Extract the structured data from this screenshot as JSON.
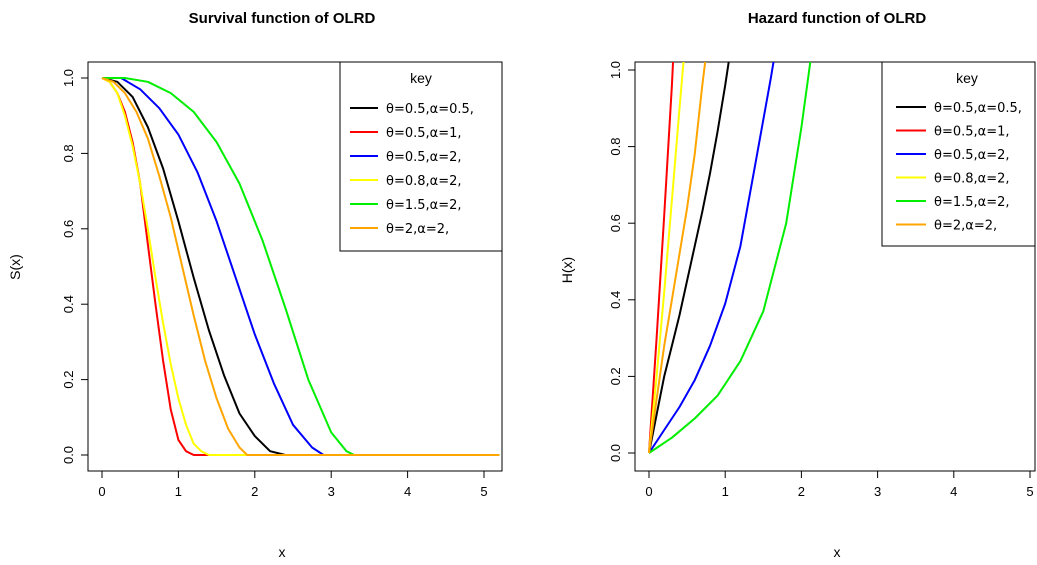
{
  "chart_data": [
    {
      "type": "line",
      "title": "Survival function of OLRD",
      "xlabel": "x",
      "ylabel": "S(x)",
      "xlim": [
        0,
        5.2
      ],
      "ylim": [
        0,
        1.0
      ],
      "xticks": [
        "0",
        "1",
        "2",
        "3",
        "4",
        "5"
      ],
      "yticks": [
        "0.0",
        "0.2",
        "0.4",
        "0.6",
        "0.8",
        "1.0"
      ],
      "legend": {
        "title": "key",
        "placement": "top-right"
      },
      "series": [
        {
          "name": "θ=0.5,α=0.5,",
          "color": "#000000",
          "x": [
            0,
            0.2,
            0.4,
            0.6,
            0.8,
            1.0,
            1.2,
            1.4,
            1.6,
            1.8,
            2.0,
            2.2,
            2.4,
            5.2
          ],
          "y": [
            1.0,
            0.99,
            0.95,
            0.87,
            0.76,
            0.62,
            0.47,
            0.33,
            0.21,
            0.11,
            0.05,
            0.01,
            0.0,
            0.0
          ]
        },
        {
          "name": "θ=0.5,α=1,",
          "color": "#ff0000",
          "x": [
            0,
            0.1,
            0.2,
            0.3,
            0.4,
            0.5,
            0.6,
            0.7,
            0.8,
            0.9,
            1.0,
            1.1,
            1.2,
            5.2
          ],
          "y": [
            1.0,
            0.99,
            0.96,
            0.91,
            0.83,
            0.72,
            0.56,
            0.4,
            0.25,
            0.12,
            0.04,
            0.01,
            0.0,
            0.0
          ]
        },
        {
          "name": "θ=0.5,α=2,",
          "color": "#0000ff",
          "x": [
            0,
            0.25,
            0.5,
            0.75,
            1.0,
            1.25,
            1.5,
            1.75,
            2.0,
            2.25,
            2.5,
            2.75,
            2.9,
            5.2
          ],
          "y": [
            1.0,
            1.0,
            0.97,
            0.92,
            0.85,
            0.75,
            0.62,
            0.47,
            0.32,
            0.19,
            0.08,
            0.02,
            0.0,
            0.0
          ]
        },
        {
          "name": "θ=0.8,α=2,",
          "color": "#ffff00",
          "x": [
            0,
            0.1,
            0.2,
            0.3,
            0.4,
            0.5,
            0.6,
            0.7,
            0.8,
            0.9,
            1.0,
            1.1,
            1.2,
            1.3,
            1.4,
            5.2
          ],
          "y": [
            1.0,
            0.99,
            0.96,
            0.9,
            0.82,
            0.72,
            0.6,
            0.47,
            0.35,
            0.24,
            0.15,
            0.08,
            0.03,
            0.01,
            0.0,
            0.0
          ]
        },
        {
          "name": "θ=1.5,α=2,",
          "color": "#00ee00",
          "x": [
            0,
            0.3,
            0.6,
            0.9,
            1.2,
            1.5,
            1.8,
            2.1,
            2.4,
            2.7,
            3.0,
            3.2,
            3.3,
            5.2
          ],
          "y": [
            1.0,
            1.0,
            0.99,
            0.96,
            0.91,
            0.83,
            0.72,
            0.57,
            0.39,
            0.2,
            0.06,
            0.01,
            0.0,
            0.0
          ]
        },
        {
          "name": "θ=2,α=2,",
          "color": "#ffa500",
          "x": [
            0,
            0.15,
            0.3,
            0.45,
            0.6,
            0.75,
            0.9,
            1.05,
            1.2,
            1.35,
            1.5,
            1.65,
            1.8,
            1.9,
            5.2
          ],
          "y": [
            1.0,
            0.99,
            0.96,
            0.91,
            0.84,
            0.74,
            0.63,
            0.5,
            0.37,
            0.25,
            0.15,
            0.07,
            0.02,
            0.0,
            0.0
          ]
        }
      ]
    },
    {
      "type": "line",
      "title": "Hazard function of OLRD",
      "xlabel": "x",
      "ylabel": "H(x)",
      "xlim": [
        0,
        5.2
      ],
      "ylim": [
        0,
        1.04
      ],
      "xticks": [
        "0",
        "1",
        "2",
        "3",
        "4",
        "5"
      ],
      "yticks": [
        "0.0",
        "0.2",
        "0.4",
        "0.6",
        "0.8",
        "1.0"
      ],
      "legend": {
        "title": "key",
        "placement": "top-right"
      },
      "series": [
        {
          "name": "θ=0.5,α=0.5,",
          "color": "#000000",
          "x": [
            0,
            0.1,
            0.2,
            0.3,
            0.4,
            0.5,
            0.6,
            0.7,
            0.8,
            0.9,
            1.0,
            1.06
          ],
          "y": [
            0.0,
            0.1,
            0.2,
            0.28,
            0.36,
            0.45,
            0.54,
            0.63,
            0.73,
            0.84,
            0.96,
            1.04
          ]
        },
        {
          "name": "θ=0.5,α=1,",
          "color": "#ff0000",
          "x": [
            0,
            0.1,
            0.2,
            0.3,
            0.32
          ],
          "y": [
            0.0,
            0.3,
            0.62,
            0.96,
            1.04
          ]
        },
        {
          "name": "θ=0.5,α=2,",
          "color": "#0000ff",
          "x": [
            0,
            0.2,
            0.4,
            0.6,
            0.8,
            1.0,
            1.2,
            1.4,
            1.6,
            1.65
          ],
          "y": [
            0.0,
            0.06,
            0.12,
            0.19,
            0.28,
            0.39,
            0.54,
            0.76,
            0.98,
            1.04
          ]
        },
        {
          "name": "θ=0.8,α=2,",
          "color": "#ffff00",
          "x": [
            0,
            0.1,
            0.2,
            0.3,
            0.4,
            0.46
          ],
          "y": [
            0.0,
            0.2,
            0.42,
            0.66,
            0.9,
            1.04
          ]
        },
        {
          "name": "θ=1.5,α=2,",
          "color": "#00ee00",
          "x": [
            0,
            0.3,
            0.6,
            0.9,
            1.2,
            1.5,
            1.8,
            2.0,
            2.13
          ],
          "y": [
            0.0,
            0.04,
            0.09,
            0.15,
            0.24,
            0.37,
            0.6,
            0.85,
            1.04
          ]
        },
        {
          "name": "θ=2,α=2,",
          "color": "#ffa500",
          "x": [
            0,
            0.1,
            0.2,
            0.3,
            0.4,
            0.5,
            0.6,
            0.7,
            0.75
          ],
          "y": [
            0.0,
            0.14,
            0.28,
            0.4,
            0.52,
            0.64,
            0.78,
            0.96,
            1.04
          ]
        }
      ]
    }
  ]
}
